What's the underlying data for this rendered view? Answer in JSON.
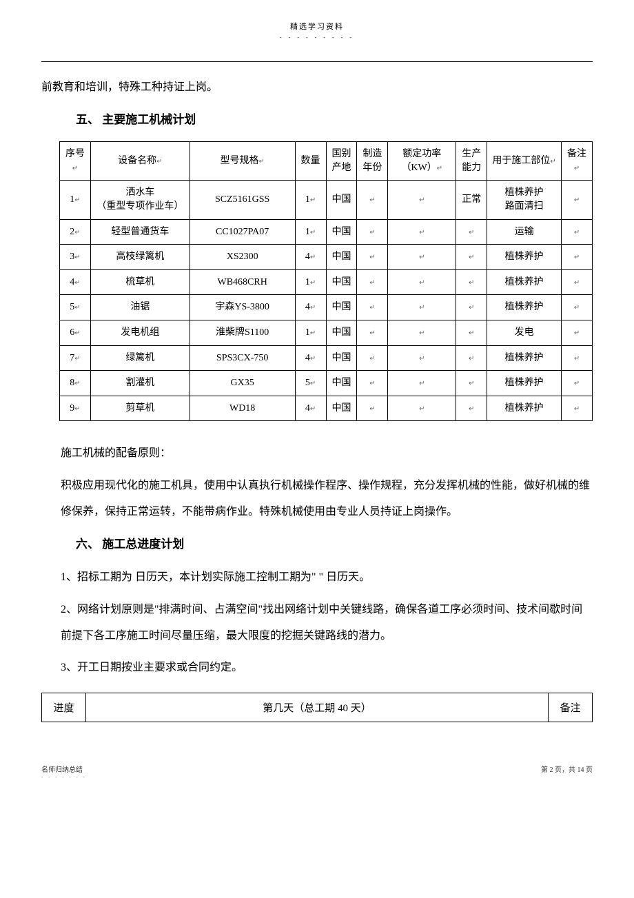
{
  "header": {
    "top_text": "精选学习资料",
    "dots": "- - - - - - - - -"
  },
  "body": {
    "line1": "前教育和培训，特殊工种持证上岗。",
    "section5": "五、  主要施工机械计划",
    "equipTable": {
      "headers": {
        "xh": "序号",
        "mc": "设备名称",
        "xh2": "型号规格",
        "sl": "数量",
        "gb": "国别产地",
        "nf": "制造年份",
        "ed": "额定功率（KW）",
        "nl": "生产能力",
        "gw": "用于施工部位",
        "bz": "备注"
      },
      "rows": [
        {
          "xh": "1",
          "mc": "洒水车\n（重型专项作业车）",
          "xh2": "SCZ5161GSS",
          "sl": "1",
          "gb": "中国",
          "nf": "",
          "ed": "",
          "nl": "正常",
          "gw": "植株养护\n路面清扫",
          "bz": ""
        },
        {
          "xh": "2",
          "mc": "轻型普通货车",
          "xh2": "CC1027PA07",
          "sl": "1",
          "gb": "中国",
          "nf": "",
          "ed": "",
          "nl": "",
          "gw": "运输",
          "bz": ""
        },
        {
          "xh": "3",
          "mc": "高枝绿篱机",
          "xh2": "XS2300",
          "sl": "4",
          "gb": "中国",
          "nf": "",
          "ed": "",
          "nl": "",
          "gw": "植株养护",
          "bz": ""
        },
        {
          "xh": "4",
          "mc": "梳草机",
          "xh2": "WB468CRH",
          "sl": "1",
          "gb": "中国",
          "nf": "",
          "ed": "",
          "nl": "",
          "gw": "植株养护",
          "bz": ""
        },
        {
          "xh": "5",
          "mc": "油锯",
          "xh2": "宇森YS-3800",
          "sl": "4",
          "gb": "中国",
          "nf": "",
          "ed": "",
          "nl": "",
          "gw": "植株养护",
          "bz": ""
        },
        {
          "xh": "6",
          "mc": "发电机组",
          "xh2": "淮柴牌S1100",
          "sl": "1",
          "gb": "中国",
          "nf": "",
          "ed": "",
          "nl": "",
          "gw": "发电",
          "bz": ""
        },
        {
          "xh": "7",
          "mc": "绿篱机",
          "xh2": "SPS3CX-750",
          "sl": "4",
          "gb": "中国",
          "nf": "",
          "ed": "",
          "nl": "",
          "gw": "植株养护",
          "bz": ""
        },
        {
          "xh": "8",
          "mc": "割灌机",
          "xh2": "GX35",
          "sl": "5",
          "gb": "中国",
          "nf": "",
          "ed": "",
          "nl": "",
          "gw": "植株养护",
          "bz": ""
        },
        {
          "xh": "9",
          "mc": "剪草机",
          "xh2": "WD18",
          "sl": "4",
          "gb": "中国",
          "nf": "",
          "ed": "",
          "nl": "",
          "gw": "植株养护",
          "bz": ""
        }
      ]
    },
    "p_equip_principle": "施工机械的配备原则：",
    "p_equip_text": "积极应用现代化的施工机具，使用中认真执行机械操作程序、操作规程，充分发挥机械的性能，做好机械的维修保养，保持正常运转，不能带病作业。特殊机械使用由专业人员持证上岗操作。",
    "section6": "六、  施工总进度计划",
    "p6_1": "1、招标工期为    日历天，本计划实际施工控制工期为\" \"  日历天。",
    "p6_2": "2、网络计划原则是\"排满时间、占满空间\"找出网络计划中关键线路，确保各道工序必须时间、技术间歇时间前提下各工序施工时间尽量压缩，最大限度的挖掘关键路线的潜力。",
    "p6_3": "3、开工日期按业主要求或合同约定。",
    "progressTable": {
      "c1": "进度",
      "c2": "第几天（总工期  40 天）",
      "c3": "备注"
    }
  },
  "footer": {
    "left": "名师归纳总结",
    "left_dots": "- - - - - - -",
    "right": "第 2 页，共 14 页"
  },
  "colors": {
    "text": "#000000",
    "bg": "#ffffff",
    "border": "#000000"
  }
}
